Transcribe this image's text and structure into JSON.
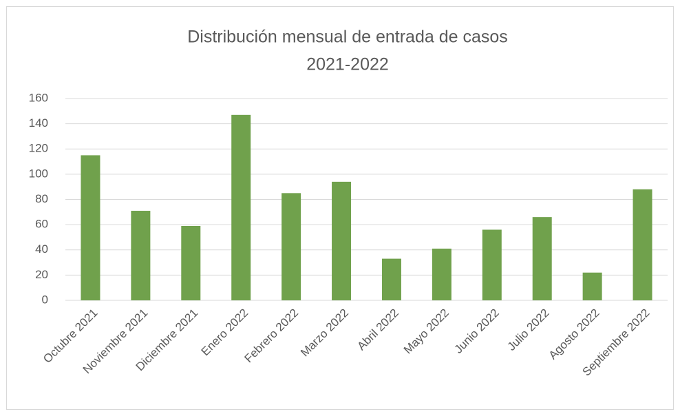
{
  "chart_data": {
    "type": "bar",
    "title": [
      "Distribución mensual de entrada de  casos",
      "2021-2022"
    ],
    "categories": [
      "Octubre 2021",
      "Noviembre 2021",
      "Diciembre 2021",
      "Enero 2022",
      "Febrero 2022",
      "Marzo 2022",
      "Abril 2022",
      "Mayo 2022",
      "Junio 2022",
      "Julio 2022",
      "Agosto 2022",
      "Septiembre 2022"
    ],
    "values": [
      115,
      71,
      59,
      147,
      85,
      94,
      33,
      41,
      56,
      66,
      22,
      88
    ],
    "color": "#70a14c",
    "ylim": [
      0,
      160
    ],
    "yticks": [
      0,
      20,
      40,
      60,
      80,
      100,
      120,
      140,
      160
    ],
    "grid": true
  }
}
